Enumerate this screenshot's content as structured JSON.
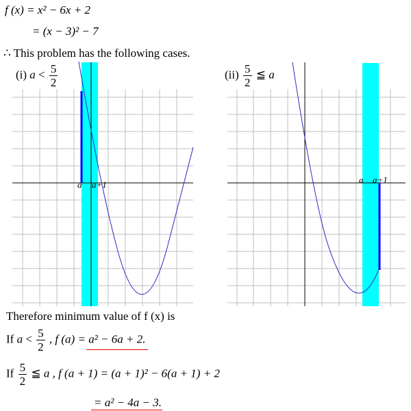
{
  "header": {
    "line1": "f (x) = x² − 6x + 2",
    "line2": "= (x − 3)² − 7",
    "cases_intro": "∴ This problem has the following cases."
  },
  "cases": [
    {
      "id": "i",
      "label": "(i)",
      "condition_var": "a",
      "condition_op": "<",
      "frac_num": "5",
      "frac_den": "2"
    },
    {
      "id": "ii",
      "label": "(ii)",
      "frac_num": "5",
      "frac_den": "2",
      "condition_op": "≦",
      "condition_var": "a"
    }
  ],
  "graph_labels": {
    "left_a": "a",
    "left_a1": "a+1",
    "right_a": "a",
    "right_a1": "a+1"
  },
  "conclusion": {
    "intro": "Therefore minimum value of  f (x) is",
    "case1_prefix": "If",
    "case1_var": "a",
    "case1_op": "<",
    "case1_num": "5",
    "case1_den": "2",
    "case1_expr": ",  f (a) = a² − 6a + 2.",
    "case2_prefix": "If",
    "case2_num": "5",
    "case2_den": "2",
    "case2_op": "≦",
    "case2_var": "a",
    "case2_expr": ",  f (a + 1) = (a + 1)² − 6(a + 1) + 2",
    "case2_result": "= a² − 4a − 3."
  },
  "colors": {
    "grid": "#bfbfbf",
    "curve": "#2b2bbf",
    "highlight": "#00ffff",
    "segment": "#0000ff",
    "underline": "#e00000"
  }
}
